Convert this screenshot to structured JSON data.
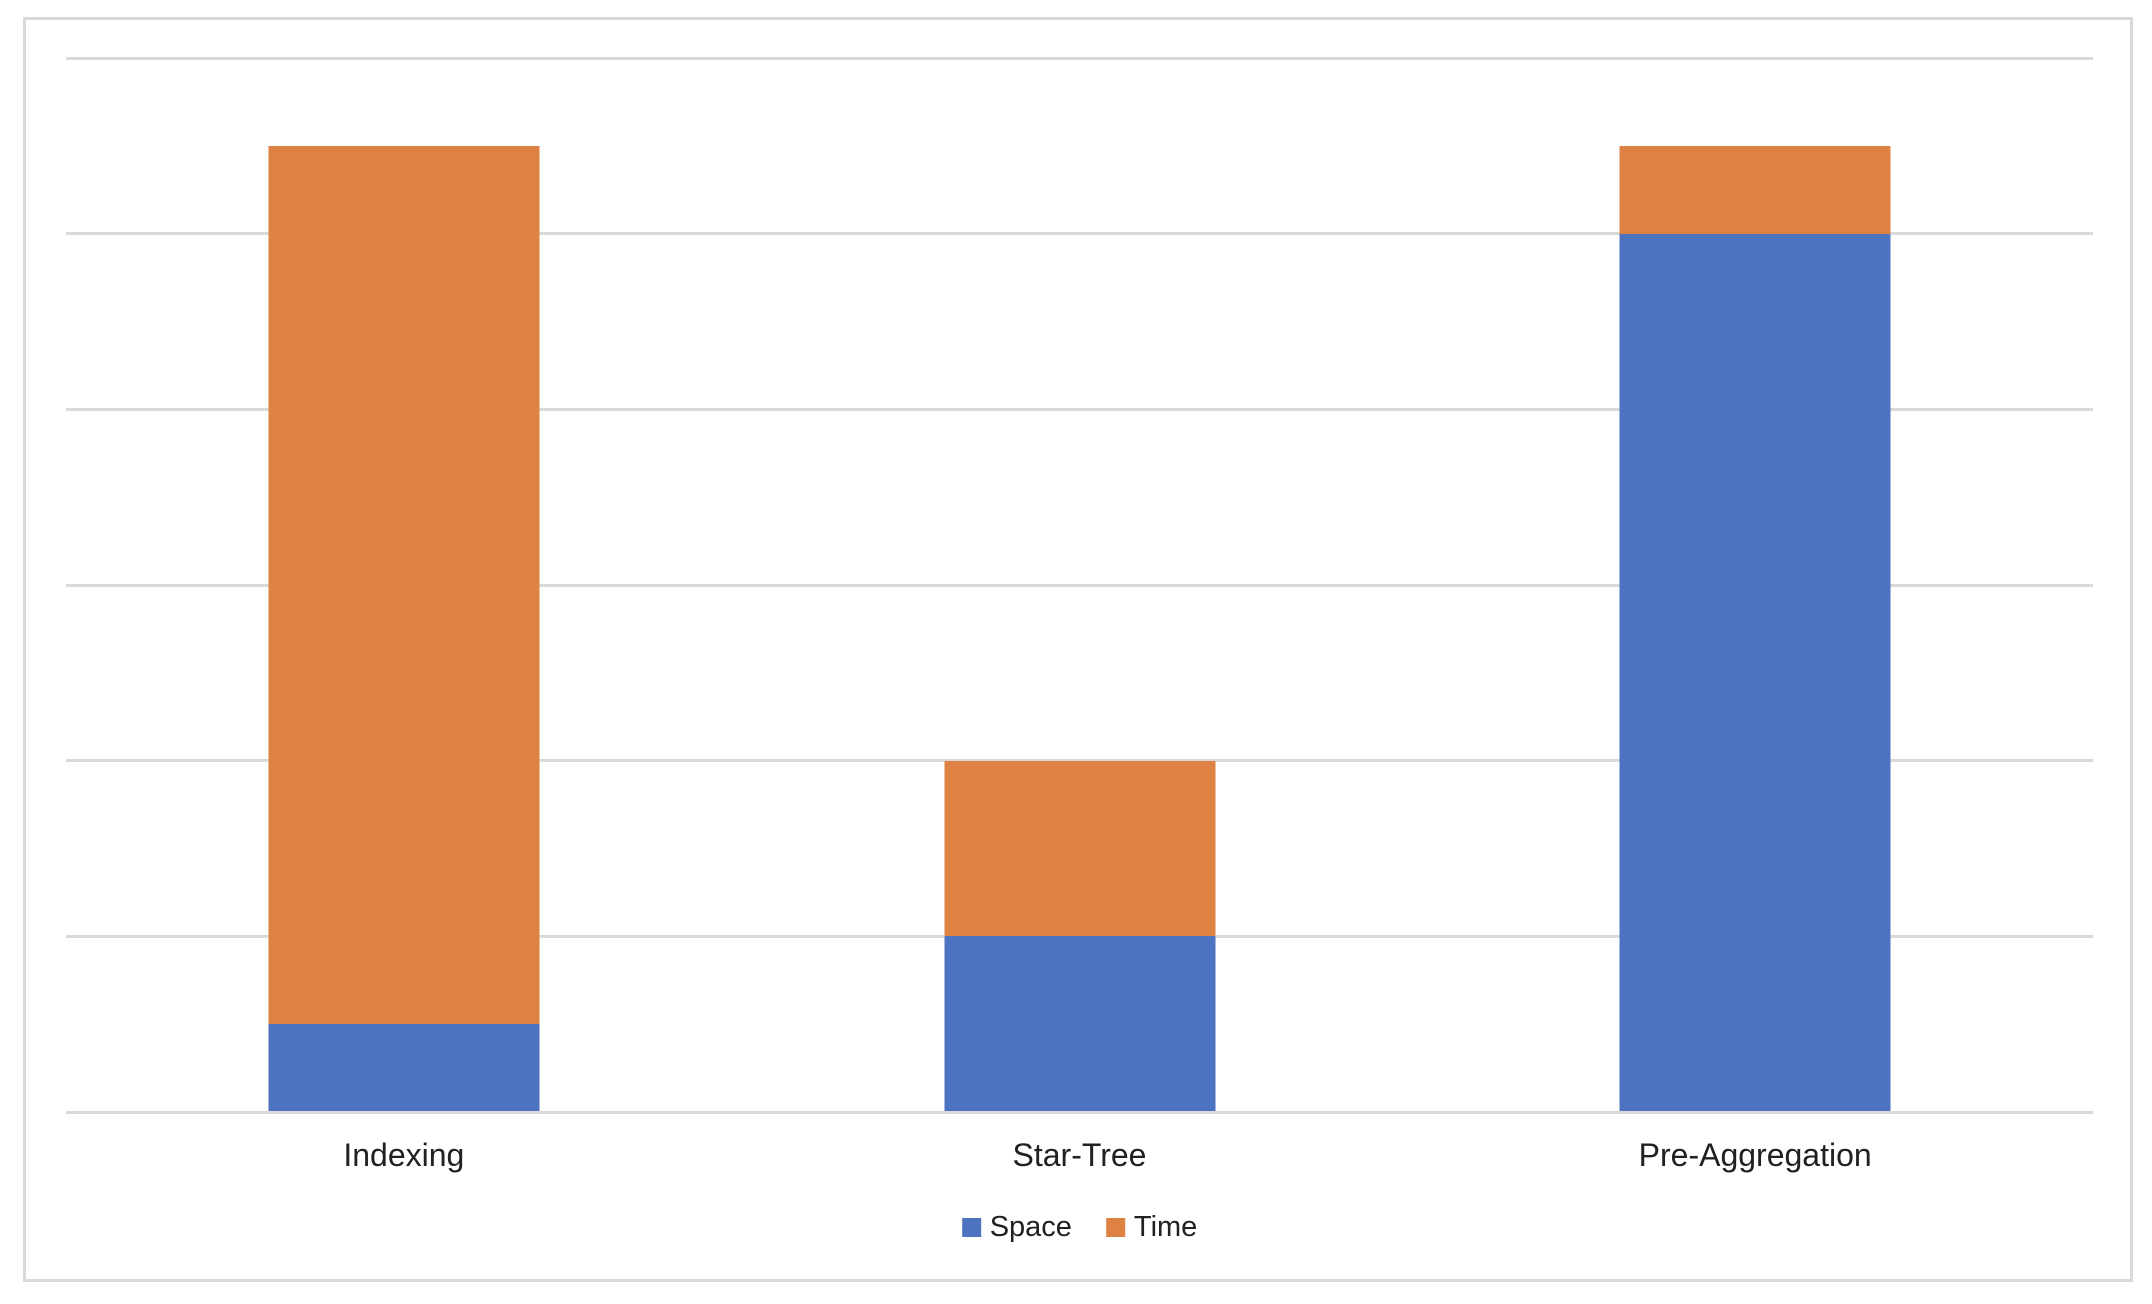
{
  "chart_data": {
    "type": "bar",
    "stacked": true,
    "title": "",
    "xlabel": "",
    "ylabel": "",
    "categories": [
      "Indexing",
      "Star-Tree",
      "Pre-Aggregation"
    ],
    "series": [
      {
        "name": "Space",
        "color": "#4C72C0",
        "values": [
          0.5,
          1.0,
          5.0
        ]
      },
      {
        "name": "Time",
        "color": "#DD8243",
        "values": [
          5.0,
          1.0,
          0.5
        ]
      }
    ],
    "ylim": [
      0,
      6
    ],
    "y_tick_interval": 1,
    "y_tick_labels_visible": false,
    "grid": "horizontal",
    "grid_color": "#D9D9D9",
    "frame_border_color": "#D9D9D9",
    "background_color": "#FFFFFF",
    "label_color": "#212121",
    "legend_position": "bottom"
  }
}
